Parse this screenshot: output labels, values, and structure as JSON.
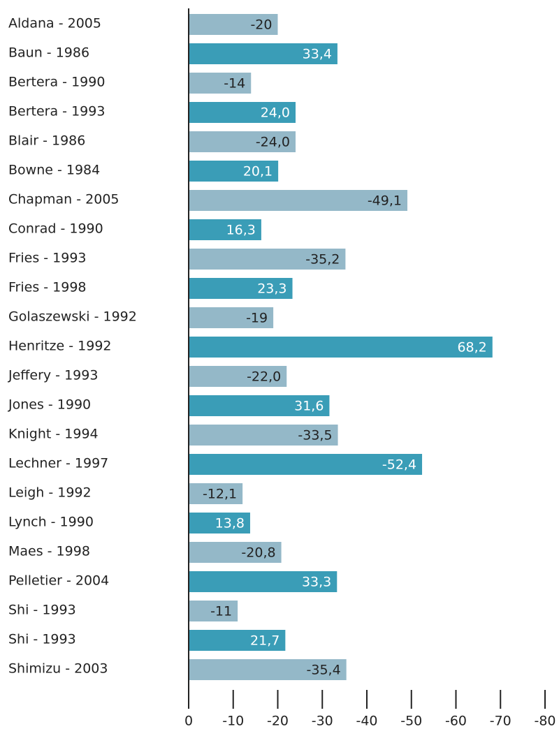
{
  "chart_data": {
    "type": "barh",
    "categories": [
      "Aldana - 2005",
      "Baun - 1986",
      "Bertera - 1990",
      "Bertera - 1993",
      "Blair - 1986",
      "Bowne - 1984",
      "Chapman - 2005",
      "Conrad - 1990",
      "Fries - 1993",
      "Fries - 1998",
      "Golaszewski - 1992",
      "Henritze - 1992",
      "Jeffery - 1993",
      "Jones - 1990",
      "Knight - 1994",
      "Lechner - 1997",
      "Leigh - 1992",
      "Lynch - 1990",
      "Maes - 1998",
      "Pelletier - 2004",
      "Shi - 1993",
      "Shi - 1993",
      "Shimizu - 2003"
    ],
    "values": [
      -20,
      33.4,
      -14,
      24.0,
      -24.0,
      20.1,
      -49.1,
      16.3,
      -35.2,
      23.3,
      -19,
      68.2,
      -22.0,
      31.6,
      -33.5,
      -52.4,
      -12.1,
      13.8,
      -20.8,
      33.3,
      -11,
      21.7,
      -35.4
    ],
    "value_labels": [
      "-20",
      "33,4",
      "-14",
      "24,0",
      "-24,0",
      "20,1",
      "-49,1",
      "16,3",
      "-35,2",
      "23,3",
      "-19",
      "68,2",
      "-22,0",
      "31,6",
      "-33,5",
      "-52,4",
      "-12,1",
      "13,8",
      "-20,8",
      "33,3",
      "-11",
      "21,7",
      "-35,4"
    ],
    "colors": [
      "#94b8c8",
      "#3a9db7"
    ],
    "xlim": [
      0,
      -80
    ],
    "xticks": [
      0,
      -10,
      -20,
      -30,
      -40,
      -50,
      -60,
      -70,
      -80
    ]
  }
}
